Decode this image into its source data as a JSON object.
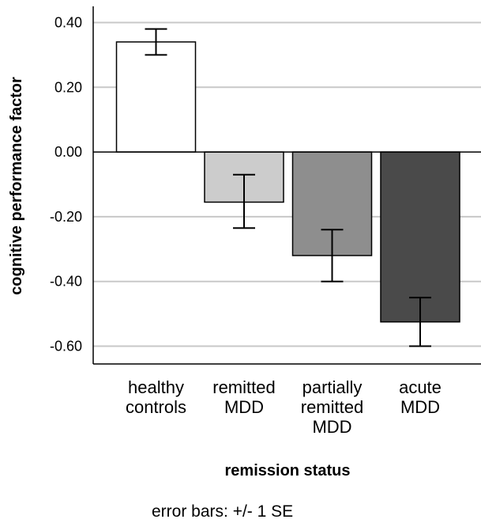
{
  "chart_data": {
    "type": "bar",
    "categories": [
      [
        "healthy",
        "controls"
      ],
      [
        "remitted",
        "MDD"
      ],
      [
        "partially",
        "remitted",
        "MDD"
      ],
      [
        "acute",
        "MDD"
      ]
    ],
    "values": [
      0.34,
      -0.155,
      -0.32,
      -0.525
    ],
    "error_low": [
      0.3,
      -0.235,
      -0.4,
      -0.6
    ],
    "error_high": [
      0.38,
      -0.07,
      -0.24,
      -0.45
    ],
    "bar_colors": [
      "#ffffff",
      "#cccccc",
      "#8e8e8e",
      "#4a4a4a"
    ],
    "ylim": [
      -0.655,
      0.45
    ],
    "yticks": [
      0.4,
      0.2,
      0.0,
      -0.2,
      -0.4,
      -0.6
    ],
    "ytick_labels": [
      "0.40",
      "0.20",
      "0.00",
      "-0.20",
      "-0.40",
      "-0.60"
    ],
    "grid": true,
    "gridline_color": "#c8c8c8",
    "ylabel": "cognitive performance factor",
    "xlabel": "remission status",
    "footnote": "error bars: +/- 1 SE"
  }
}
